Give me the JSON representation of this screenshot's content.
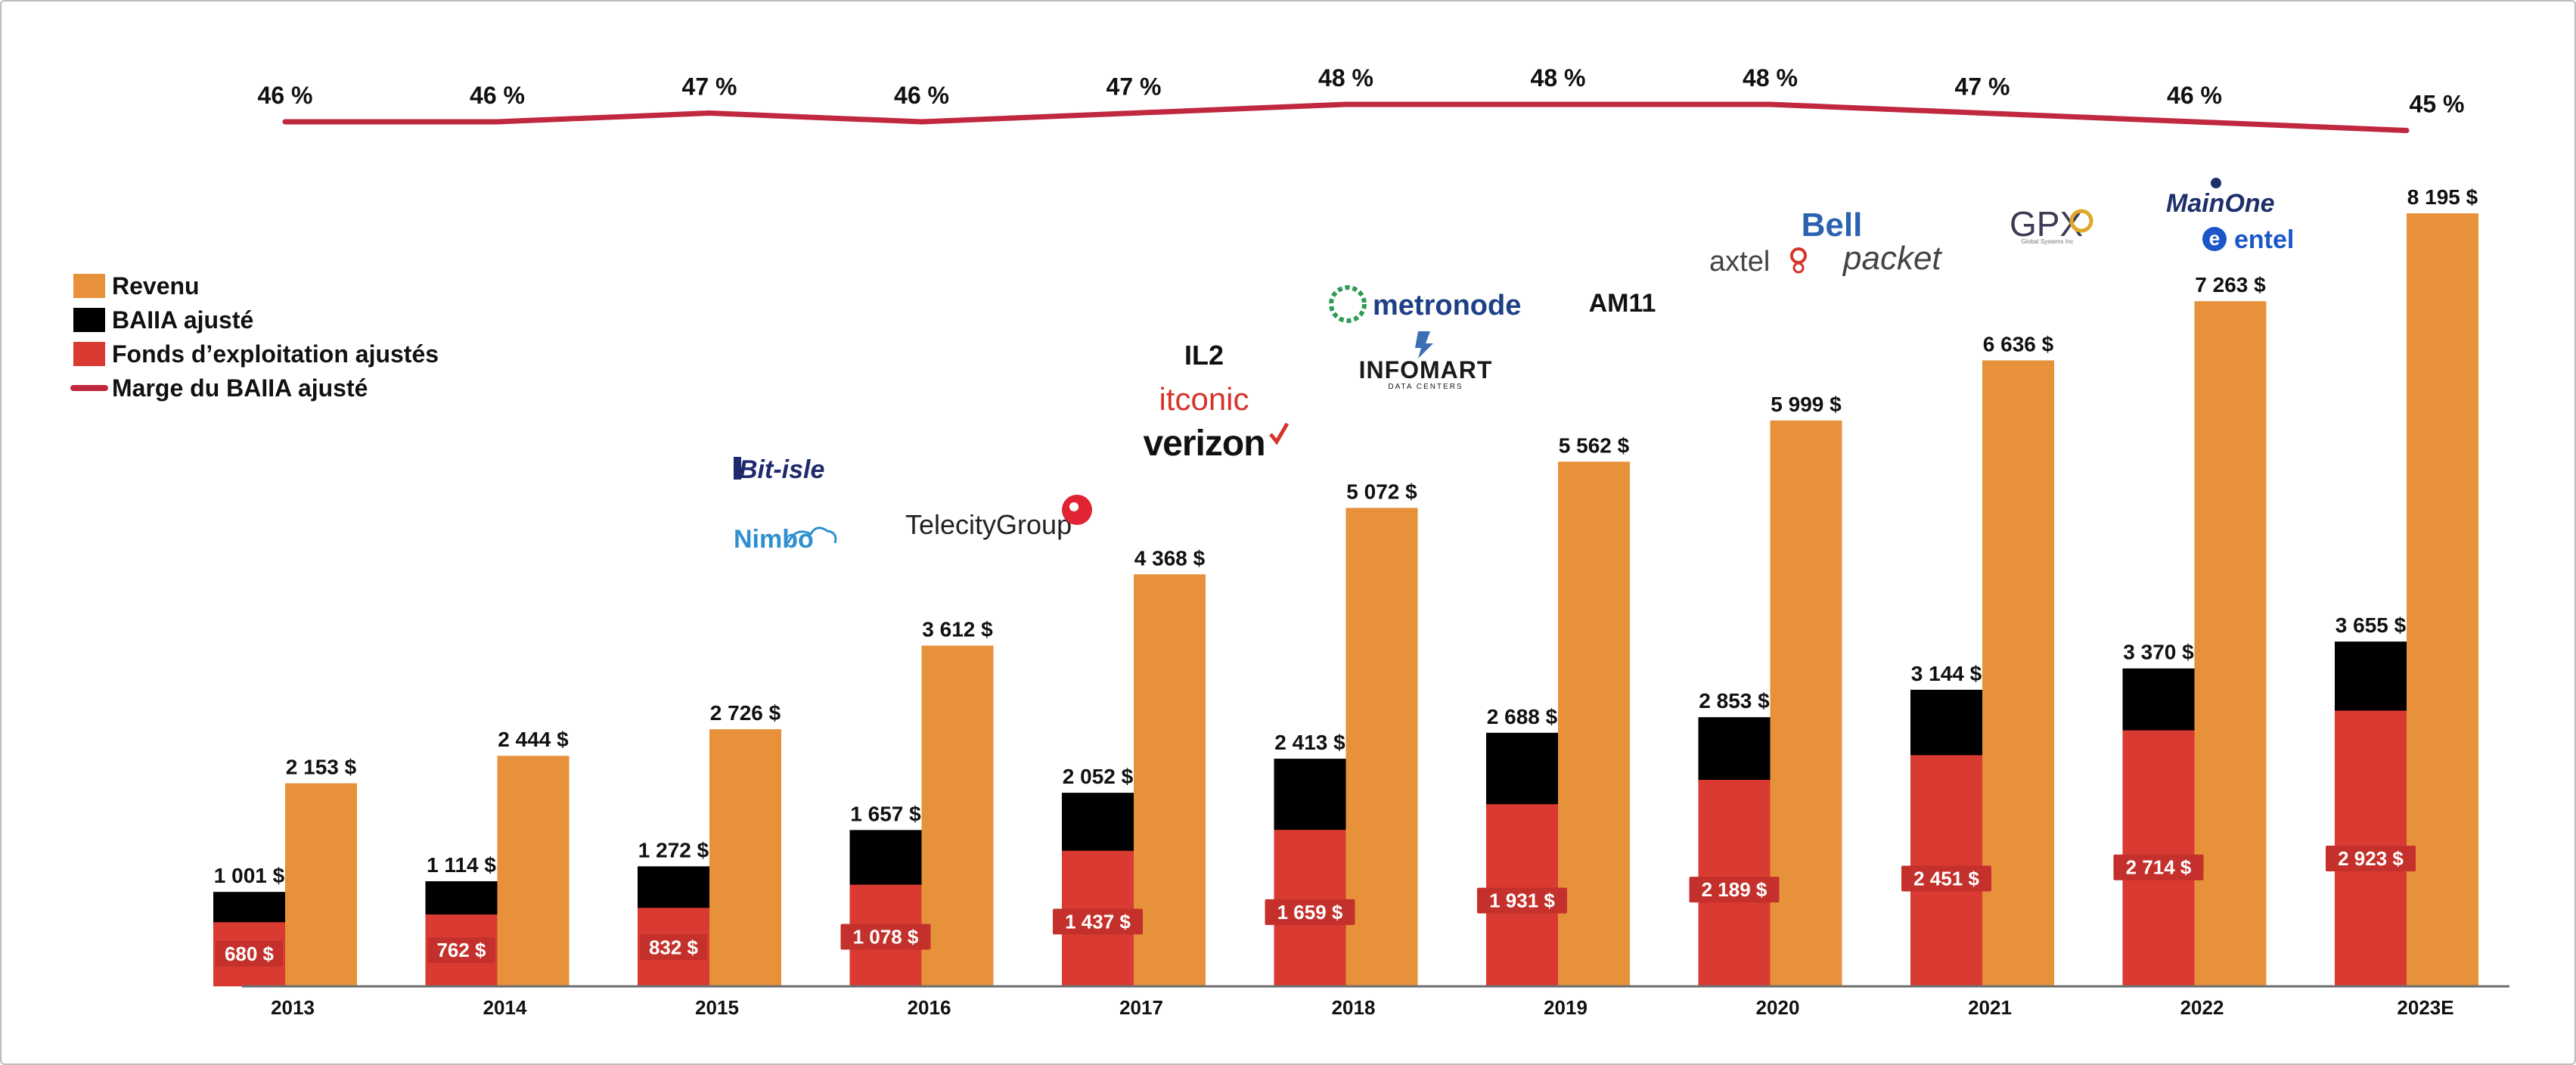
{
  "chart_data": {
    "type": "bar",
    "categories": [
      "2013",
      "2014",
      "2015",
      "2016",
      "2017",
      "2018",
      "2019",
      "2020",
      "2021",
      "2022",
      "2023E"
    ],
    "series": [
      {
        "name": "Revenu",
        "color": "#E8913B",
        "values": [
          2153,
          2444,
          2726,
          3612,
          4368,
          5072,
          5562,
          5999,
          6636,
          7263,
          8195
        ],
        "labels": [
          "2 153 $",
          "2 444 $",
          "2 726 $",
          "3 612 $",
          "4 368 $",
          "5 072 $",
          "5 562 $",
          "5 999 $",
          "6 636 $",
          "7 263 $",
          "8 195 $"
        ]
      },
      {
        "name": "BAIIA ajusté",
        "color": "#000000",
        "values": [
          1001,
          1114,
          1272,
          1657,
          2052,
          2413,
          2688,
          2853,
          3144,
          3370,
          3655
        ],
        "labels": [
          "1 001 $",
          "1 114 $",
          "1 272 $",
          "1 657 $",
          "2 052 $",
          "2 413 $",
          "2 688 $",
          "2 853 $",
          "3 144 $",
          "3 370 $",
          "3 655 $"
        ]
      },
      {
        "name": "Fonds d’exploitation ajustés",
        "color": "#D93A32",
        "values": [
          680,
          762,
          832,
          1078,
          1437,
          1659,
          1931,
          2189,
          2451,
          2714,
          2923
        ],
        "labels": [
          "680 $",
          "762 $",
          "832 $",
          "1 078 $",
          "1 437 $",
          "1 659 $",
          "1 931 $",
          "2 189 $",
          "2 451 $",
          "2 714 $",
          "2 923 $"
        ]
      },
      {
        "name": "Marge du BAIIA ajusté",
        "color": "#C0283F",
        "type": "line",
        "values": [
          46,
          46,
          47,
          46,
          47,
          48,
          48,
          48,
          47,
          46,
          45
        ],
        "labels": [
          "46 %",
          "46 %",
          "47 %",
          "46 %",
          "47 %",
          "48 %",
          "48 %",
          "48 %",
          "47 %",
          "46 %",
          "45 %"
        ]
      }
    ],
    "ylim": [
      0,
      9000
    ],
    "legend_position": "left",
    "logos": {
      "2015": [
        "Bit-isle",
        "Nimbo"
      ],
      "2016": [
        "TelecityGroup"
      ],
      "2017": [
        "IL2",
        "itconic",
        "verizon"
      ],
      "2018": [
        "metronode",
        "INFOMART",
        "DATA CENTERS"
      ],
      "2019": [
        "AM11"
      ],
      "2020": [
        "Bell",
        "axtel",
        "packet"
      ],
      "2021": [
        "GPX",
        "Global Systems Inc"
      ],
      "2022": [
        "MainOne",
        "entel"
      ]
    }
  }
}
